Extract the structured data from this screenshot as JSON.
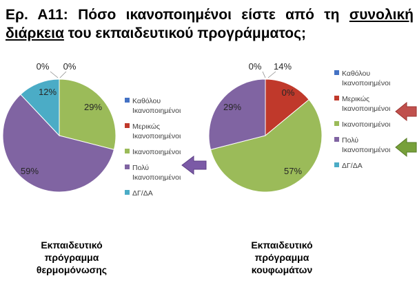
{
  "title": {
    "prefix": "Ερ. Α11: Πόσο ικανοποιημένοι είστε από τη",
    "underlined": "συνολική διάρκεια",
    "suffix": "του εκπαιδευτικού προγράμματος;"
  },
  "colors": {
    "Καθόλου Ικανοποιημένοι": "#4472c4",
    "Μερικώς Ικανοποιημένοι": "#c0392b",
    "Ικανοποιημένοι": "#9bbb59",
    "Πολύ Ικανοποιημένοι": "#8064a2",
    "ΔΓ/ΔΑ": "#4bacc6",
    "arrow_red": "#c0504d",
    "arrow_green": "#77a03a",
    "arrow_purple": "#7b5aa6"
  },
  "chart_data": [
    {
      "type": "pie",
      "title": "Εκπαιδευτικό πρόγραμμα θερμομόνωσης",
      "categories": [
        "Καθόλου Ικανοποιημένοι",
        "Μερικώς Ικανοποιημένοι",
        "Ικανοποιημένοι",
        "Πολύ Ικανοποιημένοι",
        "ΔΓ/ΔΑ"
      ],
      "values": [
        0,
        0,
        29,
        59,
        12
      ],
      "labels": [
        "0%",
        "0%",
        "29%",
        "59%",
        "12%"
      ],
      "legend": "right"
    },
    {
      "type": "pie",
      "title": "Εκπαιδευτικό πρόγραμμα κουφωμάτων",
      "categories": [
        "Καθόλου Ικανοποιημένοι",
        "Μερικώς Ικανοποιημένοι",
        "Ικανοποιημένοι",
        "Πολύ Ικανοποιημένοι",
        "ΔΓ/ΔΑ"
      ],
      "values": [
        0,
        14,
        57,
        29,
        0
      ],
      "labels": [
        "0%",
        "14%",
        "57%",
        "29%",
        "0%"
      ],
      "legend": "right"
    }
  ],
  "legend_lines": [
    [
      "Καθόλου",
      "Ικανοποιημένοι"
    ],
    [
      "Μερικώς",
      "Ικανοποιημένοι"
    ],
    [
      "Ικανοποιημένοι"
    ],
    [
      "Πολύ",
      "Ικανοποιημένοι"
    ],
    [
      "ΔΓ/ΔΑ"
    ]
  ],
  "legend_lines_2": [
    [
      "Καθόλου",
      "Ικανοποιημένοι"
    ],
    [
      "Μερικώς",
      "Ικανοποιημένοι"
    ],
    [
      "Ικανοποιημένοι"
    ],
    [
      "Πολύ",
      "Ικανοποιημένοι"
    ],
    [
      "ΔΓ/ΔΑ"
    ]
  ],
  "captions": [
    [
      "Εκπαιδευτικό",
      "πρόγραμμα",
      "θερμομόνωσης"
    ],
    [
      "Εκπαιδευτικό",
      "πρόγραμμα",
      "κουφωμάτων"
    ]
  ]
}
